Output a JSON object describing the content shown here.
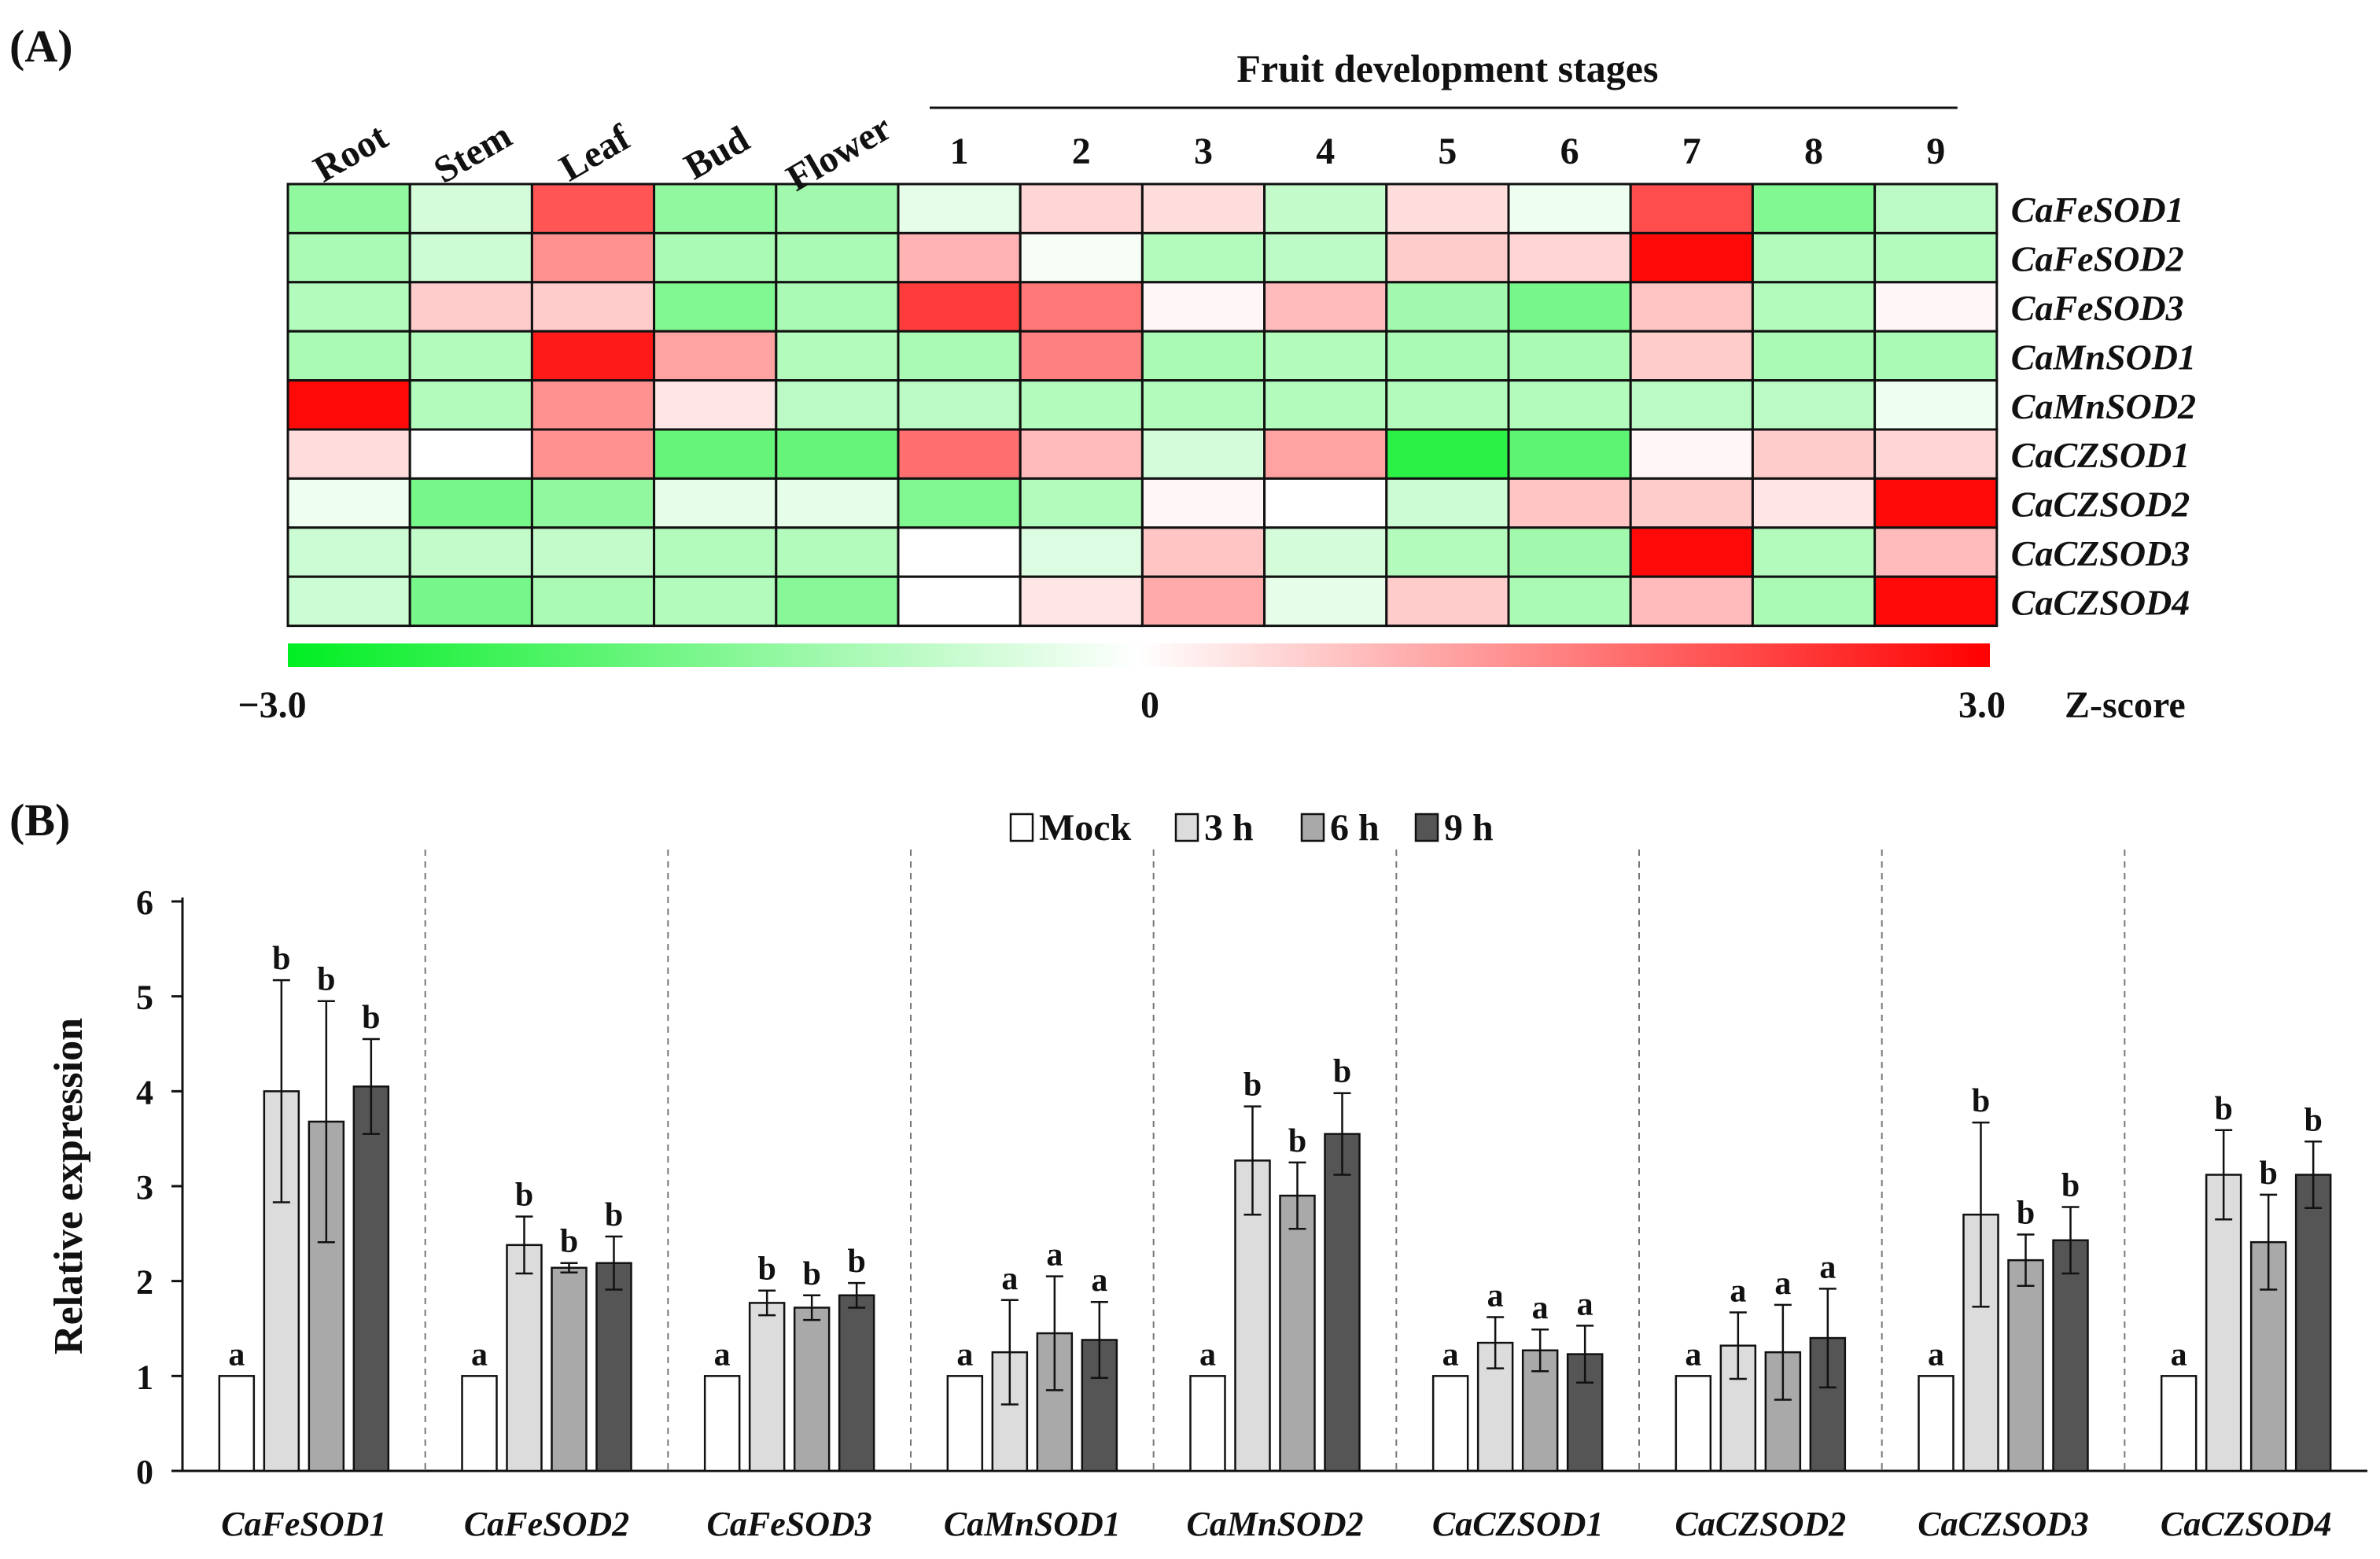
{
  "panels": {
    "a_label": "(A)",
    "b_label": "(B)"
  },
  "chart_data": [
    {
      "type": "heatmap",
      "tissue_columns": [
        "Root",
        "Stem",
        "Leaf",
        "Bud",
        "Flower"
      ],
      "stage_group_label": "Fruit development stages",
      "stage_columns": [
        "1",
        "2",
        "3",
        "4",
        "5",
        "6",
        "7",
        "8",
        "9"
      ],
      "rows": [
        "CaFeSOD1",
        "CaFeSOD2",
        "CaFeSOD3",
        "CaMnSOD1",
        "CaMnSOD2",
        "CaCZSOD1",
        "CaCZSOD2",
        "CaCZSOD3",
        "CaCZSOD4"
      ],
      "values": [
        [
          -1.3,
          -0.5,
          2.0,
          -1.3,
          -1.1,
          -0.3,
          0.5,
          0.4,
          -0.7,
          0.4,
          -0.2,
          2.1,
          -1.5,
          -0.8
        ],
        [
          -1.0,
          -0.6,
          1.3,
          -1.0,
          -1.0,
          0.9,
          -0.1,
          -0.9,
          -0.8,
          0.6,
          0.5,
          2.9,
          -0.9,
          -0.9
        ],
        [
          -0.9,
          0.6,
          0.6,
          -1.5,
          -1.0,
          2.3,
          1.6,
          0.1,
          0.8,
          -1.1,
          -1.6,
          0.7,
          -0.9,
          0.1
        ],
        [
          -1.0,
          -0.9,
          2.7,
          1.1,
          -0.9,
          -1.0,
          1.5,
          -1.0,
          -0.9,
          -1.0,
          -1.0,
          0.6,
          -1.0,
          -1.0
        ],
        [
          2.9,
          -0.9,
          1.3,
          0.3,
          -0.8,
          -0.8,
          -0.9,
          -0.9,
          -0.9,
          -0.9,
          -0.9,
          -0.8,
          -0.8,
          -0.2
        ],
        [
          0.4,
          0.0,
          1.3,
          -1.8,
          -1.8,
          1.7,
          0.8,
          -0.5,
          1.1,
          -2.5,
          -1.9,
          0.1,
          0.6,
          0.5
        ],
        [
          -0.2,
          -1.6,
          -1.3,
          -0.3,
          -0.3,
          -1.5,
          -0.9,
          0.1,
          0.0,
          -0.6,
          0.7,
          0.6,
          0.3,
          2.9
        ],
        [
          -0.6,
          -0.7,
          -0.7,
          -0.9,
          -0.9,
          -0.0,
          -0.4,
          0.7,
          -0.5,
          -0.9,
          -1.1,
          2.9,
          -0.9,
          0.8
        ],
        [
          -0.6,
          -1.6,
          -1.0,
          -0.9,
          -1.4,
          0.0,
          0.3,
          1.0,
          -0.3,
          0.6,
          -1.0,
          0.8,
          -1.0,
          2.9
        ]
      ],
      "colorbar": {
        "min": -3.0,
        "mid": 0,
        "max": 3.0,
        "min_label": "−3.0",
        "mid_label": "0",
        "max_label": "3.0",
        "label": "Z-score",
        "low_color": "#00ee22",
        "mid_color": "#ffffff",
        "high_color": "#ff0000"
      }
    },
    {
      "type": "bar",
      "title": "",
      "xlabel": "",
      "ylabel": "Relative expression",
      "ylim": [
        0,
        6
      ],
      "yticks": [
        "0",
        "1",
        "2",
        "3",
        "4",
        "5",
        "6"
      ],
      "categories": [
        "CaFeSOD1",
        "CaFeSOD2",
        "CaFeSOD3",
        "CaMnSOD1",
        "CaMnSOD2",
        "CaCZSOD1",
        "CaCZSOD2",
        "CaCZSOD3",
        "CaCZSOD4"
      ],
      "legend_position": "top-center",
      "series": [
        {
          "name": "Mock",
          "color": "#ffffff",
          "values": [
            1.0,
            1.0,
            1.0,
            1.0,
            1.0,
            1.0,
            1.0,
            1.0,
            1.0
          ],
          "errors": [
            0,
            0,
            0,
            0,
            0,
            0,
            0,
            0,
            0
          ],
          "letters": [
            "a",
            "a",
            "a",
            "a",
            "a",
            "a",
            "a",
            "a",
            "a"
          ]
        },
        {
          "name": "3 h",
          "color": "#dcdcdc",
          "values": [
            4.0,
            2.38,
            1.77,
            1.25,
            3.27,
            1.35,
            1.32,
            2.7,
            3.12
          ],
          "errors": [
            1.17,
            0.3,
            0.13,
            0.55,
            0.57,
            0.27,
            0.35,
            0.97,
            0.47
          ],
          "letters": [
            "b",
            "b",
            "b",
            "a",
            "b",
            "a",
            "a",
            "b",
            "b"
          ]
        },
        {
          "name": "6 h",
          "color": "#a9a9a9",
          "values": [
            3.68,
            2.14,
            1.72,
            1.45,
            2.9,
            1.27,
            1.25,
            2.22,
            2.41
          ],
          "errors": [
            1.27,
            0.05,
            0.13,
            0.6,
            0.35,
            0.22,
            0.5,
            0.27,
            0.5
          ],
          "letters": [
            "b",
            "b",
            "b",
            "a",
            "b",
            "a",
            "a",
            "b",
            "b"
          ]
        },
        {
          "name": "9 h",
          "color": "#555555",
          "values": [
            4.05,
            2.19,
            1.85,
            1.38,
            3.55,
            1.23,
            1.4,
            2.43,
            3.12
          ],
          "errors": [
            0.5,
            0.28,
            0.13,
            0.4,
            0.43,
            0.3,
            0.52,
            0.35,
            0.35
          ],
          "letters": [
            "b",
            "b",
            "b",
            "a",
            "b",
            "a",
            "a",
            "b",
            "b"
          ]
        }
      ]
    }
  ]
}
